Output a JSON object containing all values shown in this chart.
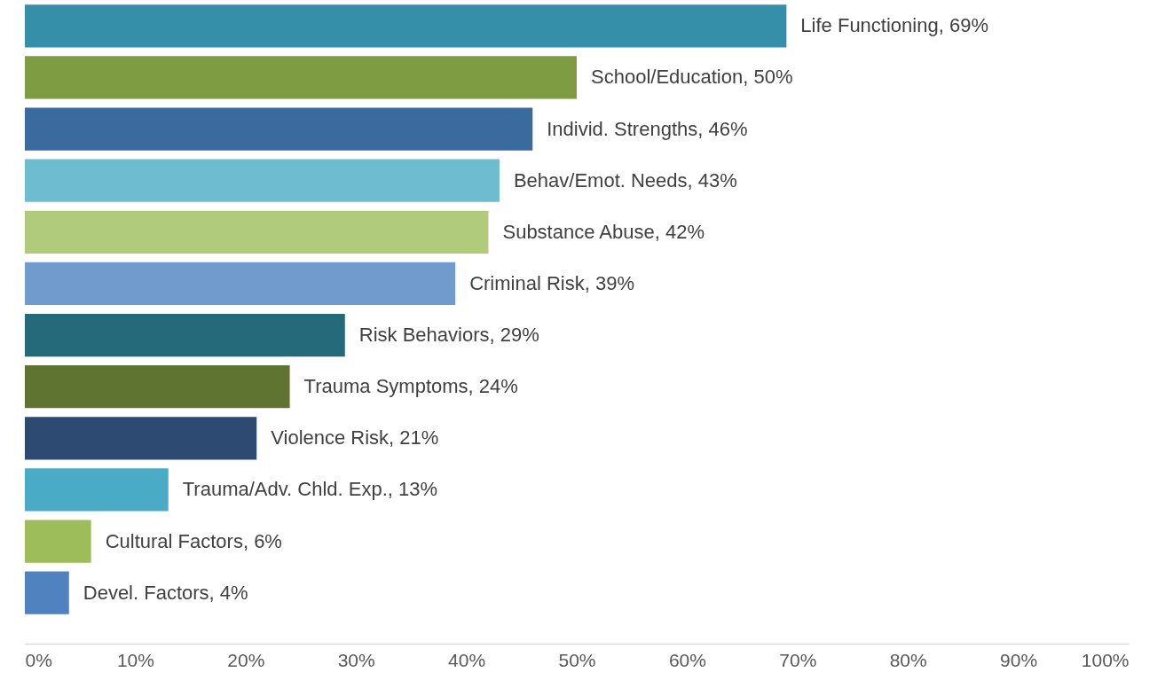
{
  "chart_data": {
    "type": "bar",
    "orientation": "horizontal",
    "categories": [
      null,
      null,
      null,
      null,
      null,
      null,
      null,
      null,
      null,
      null,
      null,
      null
    ],
    "values": [
      69,
      50,
      46,
      43,
      42,
      39,
      29,
      24,
      21,
      13,
      6,
      4
    ],
    "colors": [
      "#368fa8",
      "#7e9c41",
      "#3a6a9e",
      "#6ebccf",
      "#b0cb7c",
      "#729bcd",
      "#246a7a",
      "#5f7430",
      "#2c4a72",
      "#4aabc6",
      "#9dbd5a",
      "#5182c0"
    ],
    "value_labels": [
      "Life Functioning, 69%",
      "School/Education, 50%",
      "Individ. Strengths, 46%",
      "Behav/Emot. Needs, 43%",
      "Substance Abuse, 42%",
      "Criminal Risk, 39%",
      "Risk Behaviors, 29%",
      "Trauma Symptoms, 24%",
      "Violence Risk, 21%",
      "Trauma/Adv. Chld. Exp., 13%",
      "Cultural Factors, 6%",
      "Devel. Factors, 4%"
    ],
    "xlim": [
      0,
      100
    ],
    "xticks": [
      {
        "value": 0,
        "label": "0%"
      },
      {
        "value": 10,
        "label": "10%"
      },
      {
        "value": 20,
        "label": "20%"
      },
      {
        "value": 30,
        "label": "30%"
      },
      {
        "value": 40,
        "label": "40%"
      },
      {
        "value": 50,
        "label": "50%"
      },
      {
        "value": 60,
        "label": "60%"
      },
      {
        "value": 70,
        "label": "70%"
      },
      {
        "value": 80,
        "label": "80%"
      },
      {
        "value": 90,
        "label": "90%"
      },
      {
        "value": 100,
        "label": "100%"
      }
    ],
    "tick_labels": "x",
    "grid": false
  }
}
